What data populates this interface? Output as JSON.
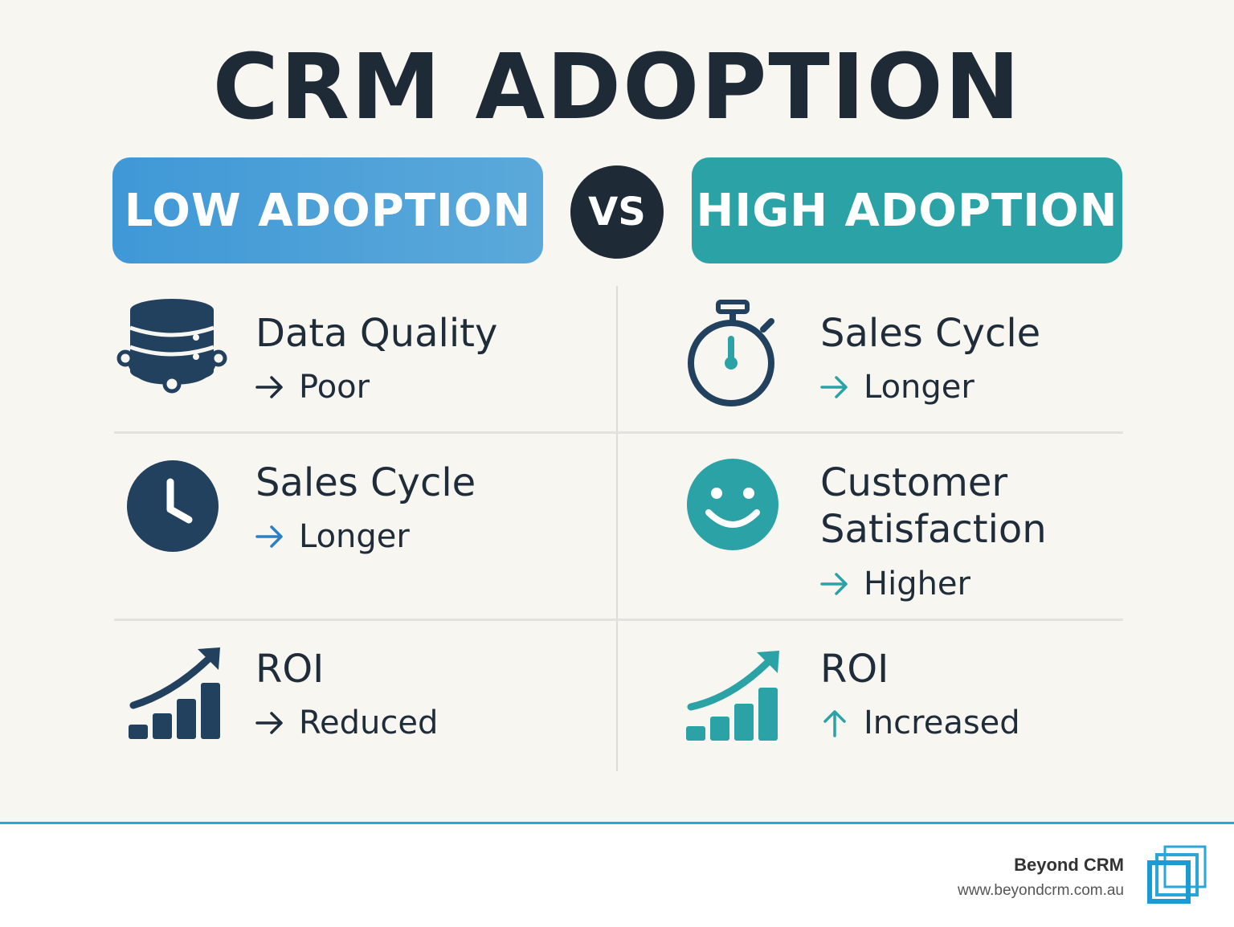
{
  "title": "CRM ADOPTION",
  "vs_label": "VS",
  "colors": {
    "dark": "#1e2a36",
    "navy_icon": "#22415f",
    "low_accent": "#3f98d6",
    "high_accent": "#2ba2a6",
    "footer_rule": "#2aa6d9"
  },
  "low": {
    "heading": "LOW ADOPTION",
    "items": [
      {
        "icon": "database-icon",
        "label": "Data Quality",
        "value": "Poor",
        "direction": "right"
      },
      {
        "icon": "clock-icon",
        "label": "Sales Cycle",
        "value": "Longer",
        "direction": "right"
      },
      {
        "icon": "growth-chart-icon",
        "label": "ROI",
        "value": "Reduced",
        "direction": "right"
      }
    ]
  },
  "high": {
    "heading": "HIGH ADOPTION",
    "items": [
      {
        "icon": "stopwatch-icon",
        "label": "Sales Cycle",
        "value": "Longer",
        "direction": "right"
      },
      {
        "icon": "smiley-icon",
        "label_line1": "Customer",
        "label_line2": "Satisfaction",
        "value": "Higher",
        "direction": "right"
      },
      {
        "icon": "growth-chart-icon",
        "label": "ROI",
        "value": "Increased",
        "direction": "up"
      }
    ]
  },
  "footer": {
    "brand_name": "Beyond CRM",
    "brand_url": "www.beyondcrm.com.au"
  }
}
